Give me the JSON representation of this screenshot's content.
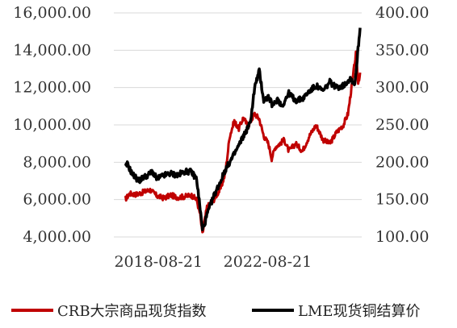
{
  "chart_data": {
    "type": "line",
    "title": "",
    "xlabel": "",
    "ylabel_left": "",
    "ylabel_right": "",
    "x_tick_labels": [
      "2018-08-21",
      "2022-08-21"
    ],
    "x_tick_dates": [
      "2018-08-21",
      "2022-08-21"
    ],
    "xlim": [
      "2017-01-01",
      "2026-02-01"
    ],
    "ylim_left": [
      4000,
      16000
    ],
    "ylim_right": [
      100,
      400
    ],
    "y_ticks_left": [
      "4,000.00",
      "6,000.00",
      "8,000.00",
      "10,000.00",
      "12,000.00",
      "14,000.00",
      "16,000.00"
    ],
    "y_ticks_right": [
      "100.00",
      "150.00",
      "200.00",
      "250.00",
      "300.00",
      "350.00",
      "400.00"
    ],
    "grid": "horizontal",
    "legend_position": "bottom",
    "colors": {
      "crb": "#c00000",
      "lme": "#000000"
    },
    "series": [
      {
        "name": "CRB大宗商品现货指数",
        "axis": "right",
        "color": "#c00000",
        "points": [
          [
            "2017-06-01",
            150
          ],
          [
            "2017-08-01",
            158
          ],
          [
            "2017-11-01",
            157
          ],
          [
            "2018-02-01",
            160
          ],
          [
            "2018-05-01",
            163
          ],
          [
            "2018-08-01",
            155
          ],
          [
            "2018-11-01",
            152
          ],
          [
            "2019-02-01",
            156
          ],
          [
            "2019-05-01",
            153
          ],
          [
            "2019-08-01",
            154
          ],
          [
            "2019-11-01",
            156
          ],
          [
            "2020-01-15",
            150
          ],
          [
            "2020-03-01",
            130
          ],
          [
            "2020-04-01",
            104
          ],
          [
            "2020-06-01",
            140
          ],
          [
            "2020-09-01",
            150
          ],
          [
            "2020-12-01",
            165
          ],
          [
            "2021-02-01",
            185
          ],
          [
            "2021-04-01",
            235
          ],
          [
            "2021-06-01",
            255
          ],
          [
            "2021-08-01",
            245
          ],
          [
            "2021-10-01",
            260
          ],
          [
            "2021-12-01",
            248
          ],
          [
            "2022-03-01",
            265
          ],
          [
            "2022-05-01",
            258
          ],
          [
            "2022-07-01",
            235
          ],
          [
            "2022-09-01",
            225
          ],
          [
            "2022-10-15",
            205
          ],
          [
            "2022-12-01",
            220
          ],
          [
            "2023-02-01",
            225
          ],
          [
            "2023-04-01",
            230
          ],
          [
            "2023-06-01",
            215
          ],
          [
            "2023-09-01",
            225
          ],
          [
            "2023-12-01",
            215
          ],
          [
            "2024-03-01",
            235
          ],
          [
            "2024-06-01",
            250
          ],
          [
            "2024-09-01",
            230
          ],
          [
            "2024-12-01",
            225
          ],
          [
            "2025-03-01",
            240
          ],
          [
            "2025-06-01",
            250
          ],
          [
            "2025-08-01",
            265
          ],
          [
            "2025-10-01",
            310
          ],
          [
            "2025-11-15",
            345
          ],
          [
            "2025-12-15",
            305
          ],
          [
            "2026-01-10",
            320
          ]
        ]
      },
      {
        "name": "LME现货铜结算价",
        "axis": "left",
        "color": "#000000",
        "points": [
          [
            "2017-06-01",
            7700
          ],
          [
            "2017-07-01",
            7900
          ],
          [
            "2017-09-01",
            7400
          ],
          [
            "2017-12-01",
            7000
          ],
          [
            "2018-02-01",
            7200
          ],
          [
            "2018-04-01",
            7300
          ],
          [
            "2018-06-01",
            7500
          ],
          [
            "2018-08-01",
            7100
          ],
          [
            "2018-11-01",
            7300
          ],
          [
            "2019-02-01",
            7400
          ],
          [
            "2019-05-01",
            7300
          ],
          [
            "2019-08-01",
            7500
          ],
          [
            "2019-11-01",
            7500
          ],
          [
            "2020-01-15",
            7100
          ],
          [
            "2020-03-01",
            5500
          ],
          [
            "2020-04-01",
            4400
          ],
          [
            "2020-05-01",
            4700
          ],
          [
            "2020-06-01",
            5200
          ],
          [
            "2020-09-01",
            6200
          ],
          [
            "2020-12-01",
            7000
          ],
          [
            "2021-02-01",
            7600
          ],
          [
            "2021-05-01",
            8200
          ],
          [
            "2021-08-01",
            8900
          ],
          [
            "2021-10-01",
            9400
          ],
          [
            "2022-01-01",
            10100
          ],
          [
            "2022-03-01",
            12000
          ],
          [
            "2022-05-01",
            12900
          ],
          [
            "2022-07-01",
            11300
          ],
          [
            "2022-09-01",
            11500
          ],
          [
            "2022-11-01",
            11000
          ],
          [
            "2023-01-01",
            11400
          ],
          [
            "2023-03-01",
            11000
          ],
          [
            "2023-06-01",
            11700
          ],
          [
            "2023-09-01",
            11300
          ],
          [
            "2023-12-01",
            11400
          ],
          [
            "2024-03-01",
            11800
          ],
          [
            "2024-06-01",
            12100
          ],
          [
            "2024-09-01",
            11800
          ],
          [
            "2024-12-01",
            12300
          ],
          [
            "2025-03-01",
            12000
          ],
          [
            "2025-06-01",
            12100
          ],
          [
            "2025-09-01",
            12500
          ],
          [
            "2025-11-01",
            12200
          ],
          [
            "2025-12-01",
            13500
          ],
          [
            "2026-01-10",
            15200
          ]
        ]
      }
    ]
  }
}
